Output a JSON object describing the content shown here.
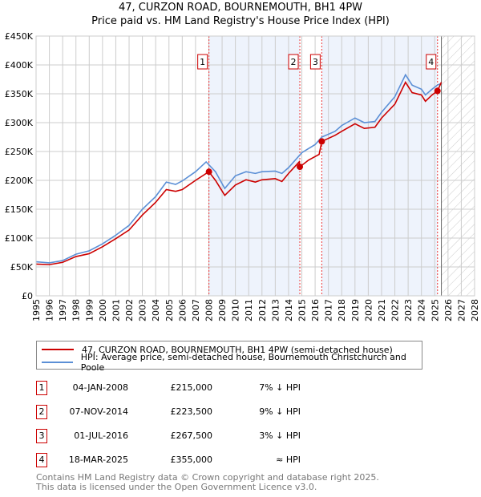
{
  "title": "47, CURZON ROAD, BOURNEMOUTH, BH1 4PW",
  "subtitle": "Price paid vs. HM Land Registry's House Price Index (HPI)",
  "chart_data": {
    "type": "line",
    "xlim": [
      1995,
      2028
    ],
    "ylim": [
      0,
      450000
    ],
    "yticks": [
      {
        "v": 0,
        "label": "£0"
      },
      {
        "v": 50000,
        "label": "£50K"
      },
      {
        "v": 100000,
        "label": "£100K"
      },
      {
        "v": 150000,
        "label": "£150K"
      },
      {
        "v": 200000,
        "label": "£200K"
      },
      {
        "v": 250000,
        "label": "£250K"
      },
      {
        "v": 300000,
        "label": "£300K"
      },
      {
        "v": 350000,
        "label": "£350K"
      },
      {
        "v": 400000,
        "label": "£400K"
      },
      {
        "v": 450000,
        "label": "£450K"
      }
    ],
    "xticks": [
      "1995",
      "1996",
      "1997",
      "1998",
      "1999",
      "2000",
      "2001",
      "2002",
      "2003",
      "2004",
      "2005",
      "2006",
      "2007",
      "2008",
      "2009",
      "2010",
      "2011",
      "2012",
      "2013",
      "2014",
      "2015",
      "2016",
      "2017",
      "2018",
      "2019",
      "2020",
      "2021",
      "2022",
      "2023",
      "2024",
      "2025",
      "2026",
      "2027",
      "2028"
    ],
    "series": [
      {
        "name": "47, CURZON ROAD, BOURNEMOUTH, BH1 4PW (semi-detached house)",
        "color": "#cc0000",
        "x": [
          1995,
          1996,
          1997,
          1998,
          1999,
          2000,
          2001,
          2002,
          2003,
          2004,
          2004.8,
          2005.5,
          2006,
          2007,
          2008.0,
          2008.5,
          2009.2,
          2010,
          2010.8,
          2011.5,
          2012,
          2013,
          2013.5,
          2014,
          2014.8,
          2014.85,
          2015.5,
          2016.3,
          2016.5,
          2017.5,
          2018,
          2019,
          2019.7,
          2020.5,
          2021,
          2022,
          2022.8,
          2023.3,
          2024,
          2024.3,
          2024.8,
          2025.21,
          2025.5
        ],
        "y": [
          55000,
          54000,
          58000,
          68000,
          73000,
          85000,
          99000,
          114000,
          140000,
          162000,
          184000,
          181000,
          184000,
          200000,
          215000,
          200000,
          174000,
          192000,
          201000,
          197000,
          201000,
          203000,
          198000,
          212000,
          232000,
          223500,
          235000,
          245000,
          267500,
          278000,
          285000,
          298000,
          290000,
          292000,
          308000,
          332000,
          370000,
          352000,
          348000,
          337000,
          348000,
          355000,
          370000
        ]
      },
      {
        "name": "HPI: Average price, semi-detached house, Bournemouth Christchurch and Poole",
        "color": "#5b8fd6",
        "x": [
          1995,
          1996,
          1997,
          1998,
          1999,
          2000,
          2001,
          2002,
          2003,
          2004,
          2004.8,
          2005.5,
          2006,
          2007,
          2007.8,
          2008.5,
          2009.2,
          2010,
          2010.8,
          2011.5,
          2012,
          2013,
          2013.5,
          2014,
          2015,
          2016,
          2016.5,
          2017.5,
          2018,
          2019,
          2019.7,
          2020.5,
          2021,
          2022,
          2022.8,
          2023.3,
          2024,
          2024.3,
          2024.8,
          2025.2,
          2025.5
        ],
        "y": [
          59000,
          57000,
          61000,
          72000,
          78000,
          90000,
          105000,
          122000,
          150000,
          172000,
          197000,
          193000,
          199000,
          215000,
          232000,
          215000,
          186000,
          208000,
          215000,
          212000,
          215000,
          216000,
          212000,
          222000,
          248000,
          262000,
          275000,
          285000,
          295000,
          308000,
          300000,
          302000,
          318000,
          345000,
          383000,
          365000,
          358000,
          348000,
          358000,
          365000,
          368000
        ]
      }
    ],
    "sales": [
      {
        "n": "1",
        "x": 2008.01,
        "date": "04-JAN-2008",
        "price": 215000,
        "price_label": "£215,000",
        "hpi": "7% ↓ HPI"
      },
      {
        "n": "2",
        "x": 2014.85,
        "date": "07-NOV-2014",
        "price": 223500,
        "price_label": "£223,500",
        "hpi": "9% ↓ HPI"
      },
      {
        "n": "3",
        "x": 2016.5,
        "date": "01-JUL-2016",
        "price": 267500,
        "price_label": "£267,500",
        "hpi": "3% ↓ HPI"
      },
      {
        "n": "4",
        "x": 2025.21,
        "date": "18-MAR-2025",
        "price": 355000,
        "price_label": "£355,000",
        "hpi": "≈ HPI"
      }
    ],
    "forecast_start": 2025.5
  },
  "footer": [
    "Contains HM Land Registry data © Crown copyright and database right 2025.",
    "This data is licensed under the Open Government Licence v3.0."
  ]
}
